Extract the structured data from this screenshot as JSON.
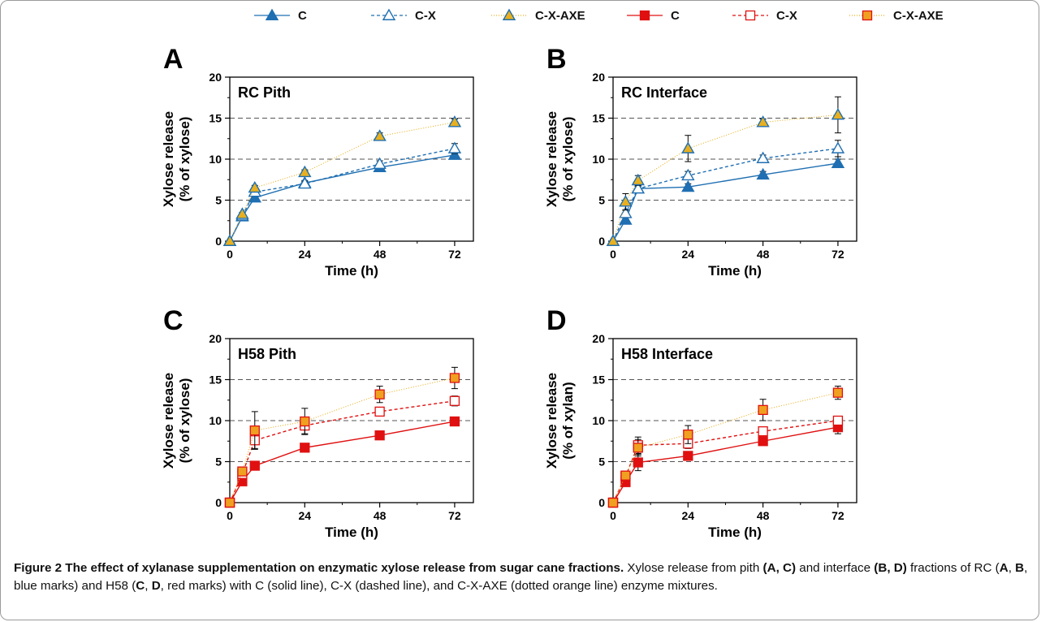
{
  "legend": {
    "items": [
      {
        "label": "C",
        "color": "#1f6fb2",
        "marker": "filled-triangle",
        "line": "solid"
      },
      {
        "label": "C-X",
        "color": "#1f6fb2",
        "marker": "open-triangle",
        "line": "dashed"
      },
      {
        "label": "C-X-AXE",
        "color": "#1f6fb2",
        "fill": "#e8b020",
        "marker": "orange-triangle",
        "line": "dotted-orange"
      },
      {
        "label": "C",
        "color": "#e01010",
        "marker": "filled-square",
        "line": "solid"
      },
      {
        "label": "C-X",
        "color": "#e01010",
        "marker": "open-square",
        "line": "dashed"
      },
      {
        "label": "C-X-AXE",
        "color": "#e01010",
        "fill": "#f0a020",
        "marker": "orange-square",
        "line": "dotted-orange"
      }
    ]
  },
  "chart_data": [
    {
      "type": "line",
      "panel_letter": "A",
      "title": "RC Pith",
      "xlabel": "Time (h)",
      "ylabel": [
        "Xylose release",
        "(% of xylose)"
      ],
      "x": [
        0,
        4,
        8,
        24,
        48,
        72
      ],
      "xticks": [
        0,
        24,
        48,
        72
      ],
      "xlim": [
        0,
        78
      ],
      "yticks": [
        0,
        5,
        10,
        15,
        20
      ],
      "ylim": [
        0,
        20
      ],
      "reference_lines": [
        5,
        10,
        15
      ],
      "series": [
        {
          "name": "C",
          "values": [
            0,
            3.0,
            5.3,
            7.1,
            9.0,
            10.5
          ],
          "errors": [
            0,
            0.2,
            0.3,
            0.3,
            0.3,
            0.4
          ],
          "marker": "filled-triangle",
          "color": "#1f6fb2",
          "fill": "#1f6fb2",
          "dash": ""
        },
        {
          "name": "C-X",
          "values": [
            0,
            3.1,
            6.0,
            7.0,
            9.4,
            11.3
          ],
          "errors": [
            0,
            0.2,
            0.3,
            0.3,
            0.4,
            0.6
          ],
          "marker": "open-triangle",
          "color": "#1f6fb2",
          "fill": "#ffffff",
          "dash": "4,3"
        },
        {
          "name": "C-X-AXE",
          "values": [
            0,
            3.3,
            6.5,
            8.4,
            12.8,
            14.5
          ],
          "errors": [
            0,
            0.2,
            0.3,
            0.3,
            0.4,
            0.4
          ],
          "marker": "orange-triangle",
          "color": "#1f6fb2",
          "fill": "#e8b020",
          "dash": "1,2"
        }
      ]
    },
    {
      "type": "line",
      "panel_letter": "B",
      "title": "RC Interface",
      "xlabel": "Time (h)",
      "ylabel": [
        "Xylose release",
        "(% of xylose)"
      ],
      "x": [
        0,
        4,
        8,
        24,
        48,
        72
      ],
      "xticks": [
        0,
        24,
        48,
        72
      ],
      "xlim": [
        0,
        78
      ],
      "yticks": [
        0,
        5,
        10,
        15,
        20
      ],
      "ylim": [
        0,
        20
      ],
      "reference_lines": [
        5,
        10,
        15
      ],
      "series": [
        {
          "name": "C",
          "values": [
            0,
            2.6,
            6.4,
            6.6,
            8.1,
            9.5
          ],
          "errors": [
            0,
            0.3,
            0.3,
            0.4,
            0.4,
            0.5
          ],
          "marker": "filled-triangle",
          "color": "#1f6fb2",
          "fill": "#1f6fb2",
          "dash": ""
        },
        {
          "name": "C-X",
          "values": [
            0,
            3.4,
            6.4,
            8.0,
            10.1,
            11.3
          ],
          "errors": [
            0,
            0.4,
            0.4,
            0.5,
            0.4,
            1.0
          ],
          "marker": "open-triangle",
          "color": "#1f6fb2",
          "fill": "#ffffff",
          "dash": "4,3"
        },
        {
          "name": "C-X-AXE",
          "values": [
            0,
            4.8,
            7.4,
            11.3,
            14.5,
            15.4
          ],
          "errors": [
            0,
            1.0,
            0.6,
            1.6,
            0.4,
            2.2
          ],
          "marker": "orange-triangle",
          "color": "#1f6fb2",
          "fill": "#e8b020",
          "dash": "1,2"
        }
      ]
    },
    {
      "type": "line",
      "panel_letter": "C",
      "title": "H58 Pith",
      "xlabel": "Time (h)",
      "ylabel": [
        "Xylose release",
        "(% of xylose)"
      ],
      "x": [
        0,
        4,
        8,
        24,
        48,
        72
      ],
      "xticks": [
        0,
        24,
        48,
        72
      ],
      "xlim": [
        0,
        78
      ],
      "yticks": [
        0,
        5,
        10,
        15,
        20
      ],
      "ylim": [
        0,
        20
      ],
      "reference_lines": [
        5,
        10,
        15
      ],
      "series": [
        {
          "name": "C",
          "values": [
            0,
            2.6,
            4.5,
            6.7,
            8.2,
            9.9
          ],
          "errors": [
            0,
            0.2,
            0.3,
            0.3,
            0.3,
            0.4
          ],
          "marker": "filled-square",
          "color": "#e01010",
          "fill": "#e01010",
          "dash": ""
        },
        {
          "name": "C-X",
          "values": [
            0,
            3.5,
            7.6,
            9.4,
            11.1,
            12.4
          ],
          "errors": [
            0,
            0.3,
            1.0,
            1.0,
            0.5,
            0.6
          ],
          "marker": "open-square",
          "color": "#e01010",
          "fill": "#ffffff",
          "dash": "4,3"
        },
        {
          "name": "C-X-AXE",
          "values": [
            0,
            3.8,
            8.8,
            9.9,
            13.2,
            15.2
          ],
          "errors": [
            0,
            0.3,
            2.3,
            1.6,
            1.0,
            1.3
          ],
          "marker": "orange-square",
          "color": "#e01010",
          "fill": "#f0a020",
          "dash": "1,2"
        }
      ]
    },
    {
      "type": "line",
      "panel_letter": "D",
      "title": "H58 Interface",
      "xlabel": "Time (h)",
      "ylabel": [
        "Xylose release",
        "(% of xylan)"
      ],
      "x": [
        0,
        4,
        8,
        24,
        48,
        72
      ],
      "xticks": [
        0,
        24,
        48,
        72
      ],
      "xlim": [
        0,
        78
      ],
      "yticks": [
        0,
        5,
        10,
        15,
        20
      ],
      "ylim": [
        0,
        20
      ],
      "reference_lines": [
        5,
        10,
        15
      ],
      "series": [
        {
          "name": "C",
          "values": [
            0,
            2.5,
            4.9,
            5.7,
            7.5,
            9.2
          ],
          "errors": [
            0,
            0.2,
            1.0,
            0.4,
            0.5,
            0.8
          ],
          "marker": "filled-square",
          "color": "#e01010",
          "fill": "#e01010",
          "dash": ""
        },
        {
          "name": "C-X",
          "values": [
            0,
            3.2,
            7.0,
            7.2,
            8.7,
            10.0
          ],
          "errors": [
            0,
            0.3,
            1.0,
            0.6,
            0.5,
            0.4
          ],
          "marker": "open-square",
          "color": "#e01010",
          "fill": "#ffffff",
          "dash": "4,3"
        },
        {
          "name": "C-X-AXE",
          "values": [
            0,
            3.3,
            6.7,
            8.3,
            11.3,
            13.4
          ],
          "errors": [
            0,
            0.3,
            1.0,
            1.1,
            1.3,
            0.8
          ],
          "marker": "orange-square",
          "color": "#e01010",
          "fill": "#f0a020",
          "dash": "1,2"
        }
      ]
    }
  ],
  "caption": {
    "title": "Figure 2 The effect of xylanase supplementation on enzymatic xylose release from sugar cane fractions.",
    "t1": " Xylose release from pith ",
    "b1": "(A, C)",
    "t2": " and interface ",
    "b2": "(B, D)",
    "t3": " fractions of RC (",
    "b3": "A",
    "t4": ", ",
    "b4": "B",
    "t5": ", blue marks) and H58 (",
    "b5": "C",
    "t6": ", ",
    "b6": "D",
    "t7": ", red marks) with C (solid line), C-X (dashed line), and C-X-AXE (dotted orange line) enzyme mixtures."
  }
}
